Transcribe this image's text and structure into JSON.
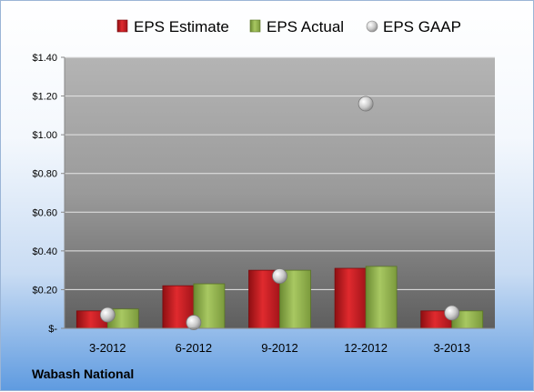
{
  "company": "Wabash National",
  "chart_data": {
    "type": "bar",
    "categories": [
      "3-2012",
      "6-2012",
      "9-2012",
      "12-2012",
      "3-2013"
    ],
    "series": [
      {
        "name": "EPS Estimate",
        "kind": "bar",
        "color": "#c0171c",
        "values": [
          0.09,
          0.22,
          0.3,
          0.31,
          0.09
        ]
      },
      {
        "name": "EPS Actual",
        "kind": "bar",
        "color": "#8cab4b",
        "values": [
          0.1,
          0.23,
          0.3,
          0.32,
          0.09
        ]
      },
      {
        "name": "EPS GAAP",
        "kind": "scatter",
        "color": "#c8c8c8",
        "values": [
          0.07,
          0.03,
          0.27,
          1.16,
          0.08
        ]
      }
    ],
    "yticks": [
      "$-",
      "$0.20",
      "$0.40",
      "$0.60",
      "$0.80",
      "$1.00",
      "$1.20",
      "$1.40"
    ],
    "ylim": [
      0,
      1.4
    ],
    "grid": true,
    "legend": "top"
  }
}
